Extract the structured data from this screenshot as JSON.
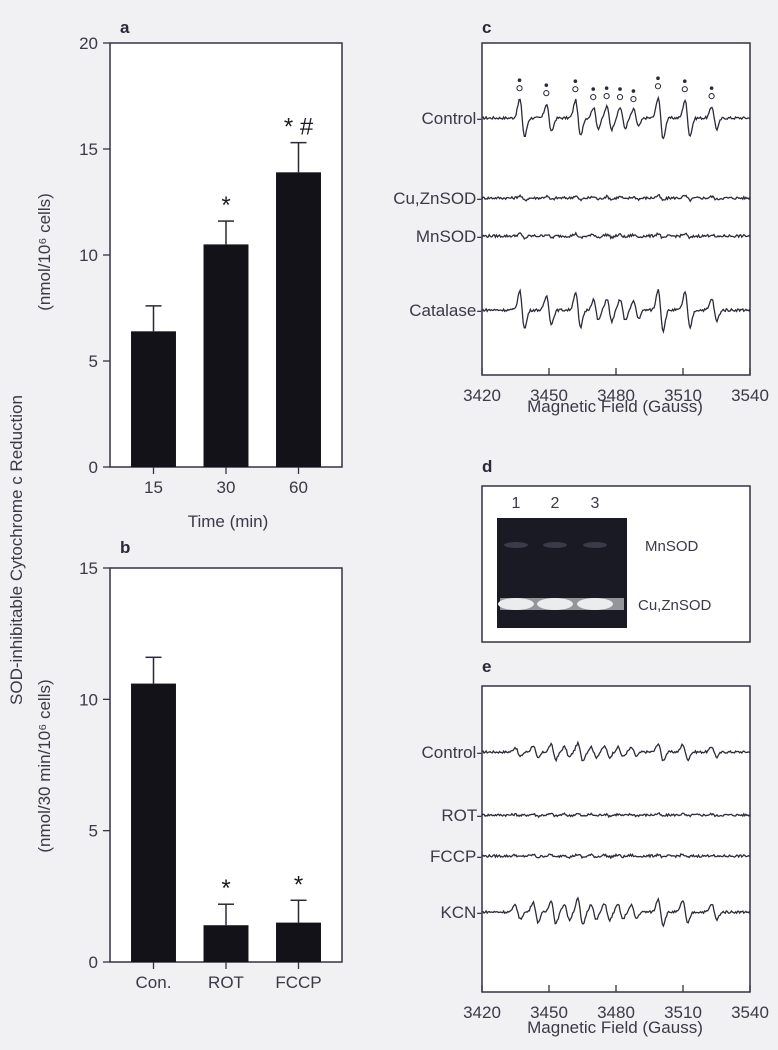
{
  "shared_ylabel": {
    "line1": "SOD-inhibitable Cytochrome c Reduction"
  },
  "chart_data": [
    {
      "panel": "a",
      "type": "bar",
      "categories": [
        "15",
        "30",
        "60"
      ],
      "values": [
        6.4,
        10.5,
        13.9
      ],
      "errors": [
        1.2,
        1.1,
        1.4
      ],
      "annotations": [
        "",
        "*",
        "* #"
      ],
      "xlabel": "Time (min)",
      "ylabel": "(nmol/10⁶ cells)",
      "ylim": [
        0,
        20
      ],
      "yticks": [
        0,
        5,
        10,
        15,
        20
      ]
    },
    {
      "panel": "b",
      "type": "bar",
      "categories": [
        "Con.",
        "ROT",
        "FCCP"
      ],
      "values": [
        10.6,
        1.4,
        1.5
      ],
      "errors": [
        1.0,
        0.8,
        0.85
      ],
      "annotations": [
        "",
        "*",
        "*"
      ],
      "ylabel": "(nmol/30 min/10⁶ cells)",
      "ylim": [
        0,
        15
      ],
      "yticks": [
        0,
        5,
        10,
        15
      ]
    },
    {
      "panel": "c",
      "type": "line",
      "xlabel": "Magnetic Field (Gauss)",
      "xlim": [
        3420,
        3540
      ],
      "xticks": [
        3420,
        3450,
        3480,
        3510,
        3540
      ],
      "series": [
        {
          "name": "Control",
          "amplitude": 1.0,
          "markers": true
        },
        {
          "name": "Cu,ZnSOD",
          "amplitude": 0.12
        },
        {
          "name": "MnSOD",
          "amplitude": 0.12
        },
        {
          "name": "Catalase",
          "amplitude": 1.0
        }
      ],
      "peaks": [
        {
          "x": 3438,
          "h": 1.0
        },
        {
          "x": 3450,
          "h": 0.75
        },
        {
          "x": 3463,
          "h": 0.95
        },
        {
          "x": 3471,
          "h": 0.55
        },
        {
          "x": 3477,
          "h": 0.6
        },
        {
          "x": 3483,
          "h": 0.55
        },
        {
          "x": 3489,
          "h": 0.45
        },
        {
          "x": 3500,
          "h": 1.1
        },
        {
          "x": 3512,
          "h": 0.95
        },
        {
          "x": 3524,
          "h": 0.6
        }
      ]
    },
    {
      "panel": "d",
      "type": "gel",
      "lanes": [
        "1",
        "2",
        "3"
      ],
      "bands": [
        "MnSOD",
        "Cu,ZnSOD"
      ]
    },
    {
      "panel": "e",
      "type": "line",
      "xlabel": "Magnetic Field (Gauss)",
      "xlim": [
        3420,
        3540
      ],
      "xticks": [
        3420,
        3450,
        3480,
        3510,
        3540
      ],
      "series": [
        {
          "name": "Control",
          "amplitude": 0.55
        },
        {
          "name": "ROT",
          "amplitude": 0.08
        },
        {
          "name": "FCCP",
          "amplitude": 0.1
        },
        {
          "name": "KCN",
          "amplitude": 0.85
        }
      ],
      "peaks": [
        {
          "x": 3436,
          "h": 0.5
        },
        {
          "x": 3444,
          "h": 0.7
        },
        {
          "x": 3452,
          "h": 0.8
        },
        {
          "x": 3458,
          "h": 0.55
        },
        {
          "x": 3464,
          "h": 0.9
        },
        {
          "x": 3470,
          "h": 0.55
        },
        {
          "x": 3476,
          "h": 0.6
        },
        {
          "x": 3482,
          "h": 0.5
        },
        {
          "x": 3488,
          "h": 0.45
        },
        {
          "x": 3500,
          "h": 0.9
        },
        {
          "x": 3511,
          "h": 0.8
        },
        {
          "x": 3524,
          "h": 0.55
        }
      ]
    }
  ]
}
